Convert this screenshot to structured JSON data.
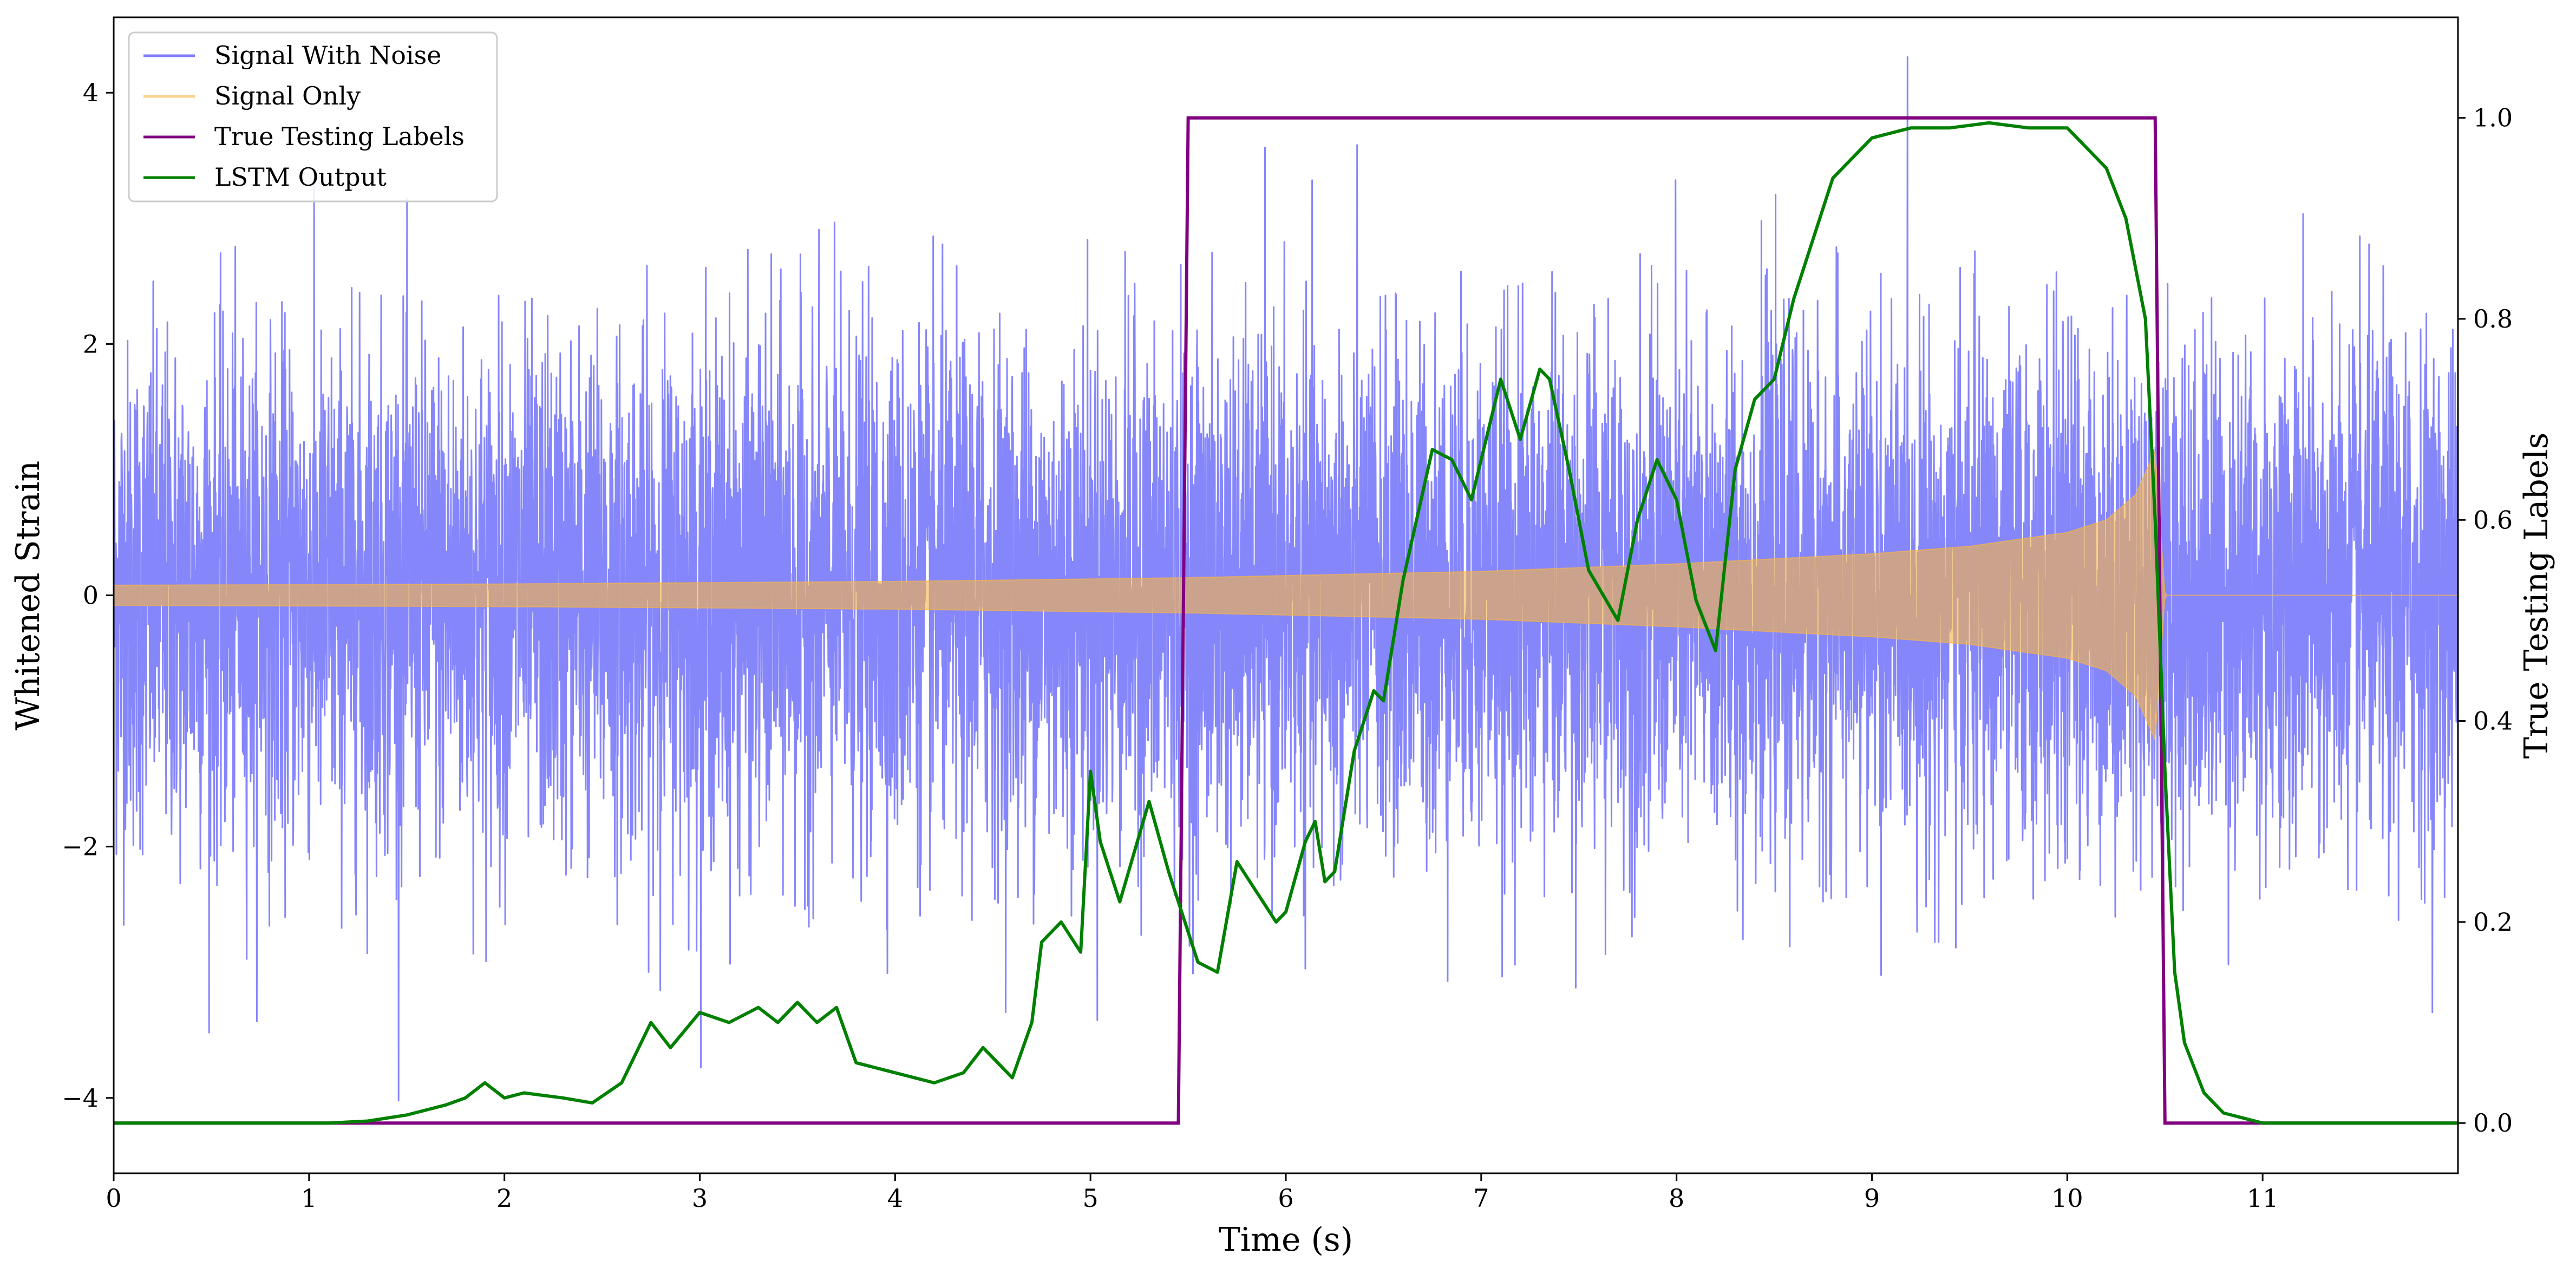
{
  "chart_data": {
    "type": "line",
    "x_axis": {
      "label": "Time (s)",
      "range": [
        0,
        12
      ],
      "ticks": [
        0,
        1,
        2,
        3,
        4,
        5,
        6,
        7,
        8,
        9,
        10,
        11
      ],
      "tick_labels": [
        "0",
        "1",
        "2",
        "3",
        "4",
        "5",
        "6",
        "7",
        "8",
        "9",
        "10",
        "11"
      ]
    },
    "y_axis_left": {
      "label": "Whitened Strain",
      "range": [
        -4.6,
        4.6
      ],
      "ticks": [
        -4,
        -2,
        0,
        2,
        4
      ],
      "tick_labels": [
        "−4",
        "−2",
        "0",
        "2",
        "4"
      ]
    },
    "y_axis_right": {
      "label": "True Testing Labels",
      "range": [
        -0.05,
        1.1
      ],
      "ticks": [
        0.0,
        0.2,
        0.4,
        0.6,
        0.8,
        1.0
      ],
      "tick_labels": [
        "0.0",
        "0.2",
        "0.4",
        "0.6",
        "0.8",
        "1.0"
      ]
    },
    "legend": {
      "position": "top-left",
      "entries": [
        "Signal With Noise",
        "Signal Only",
        "True Testing Labels",
        "LSTM Output"
      ]
    },
    "series": [
      {
        "name": "Signal With Noise",
        "axis": "left",
        "color": "#7f7ffb",
        "kind": "dense noise trace",
        "t_range": [
          0,
          12
        ],
        "rms_approx": 1.0,
        "min_approx": -4.1,
        "max_approx": 4.3
      },
      {
        "name": "Signal Only",
        "axis": "left",
        "color": "#f5b347",
        "kind": "chirp envelope",
        "t_range": [
          0,
          12
        ],
        "envelope": [
          [
            0,
            0.08
          ],
          [
            2,
            0.09
          ],
          [
            4,
            0.11
          ],
          [
            5.5,
            0.14
          ],
          [
            7,
            0.19
          ],
          [
            8,
            0.25
          ],
          [
            9,
            0.33
          ],
          [
            9.5,
            0.39
          ],
          [
            10,
            0.5
          ],
          [
            10.2,
            0.6
          ],
          [
            10.35,
            0.8
          ],
          [
            10.45,
            1.15
          ],
          [
            10.5,
            0.0
          ],
          [
            12,
            0.0
          ]
        ]
      },
      {
        "name": "True Testing Labels",
        "axis": "right",
        "color": "#800080",
        "points": [
          [
            0,
            0.0
          ],
          [
            5.45,
            0.0
          ],
          [
            5.5,
            1.0
          ],
          [
            10.45,
            1.0
          ],
          [
            10.5,
            0.0
          ],
          [
            12,
            0.0
          ]
        ]
      },
      {
        "name": "LSTM Output",
        "axis": "right",
        "color": "#008000",
        "points": [
          [
            0,
            0.0
          ],
          [
            0.9,
            0.0
          ],
          [
            1.1,
            0.0
          ],
          [
            1.3,
            0.002
          ],
          [
            1.5,
            0.008
          ],
          [
            1.7,
            0.018
          ],
          [
            1.8,
            0.025
          ],
          [
            1.9,
            0.04
          ],
          [
            2.0,
            0.025
          ],
          [
            2.1,
            0.03
          ],
          [
            2.3,
            0.025
          ],
          [
            2.45,
            0.02
          ],
          [
            2.6,
            0.04
          ],
          [
            2.75,
            0.1
          ],
          [
            2.85,
            0.075
          ],
          [
            3.0,
            0.11
          ],
          [
            3.15,
            0.1
          ],
          [
            3.3,
            0.115
          ],
          [
            3.4,
            0.1
          ],
          [
            3.5,
            0.12
          ],
          [
            3.6,
            0.1
          ],
          [
            3.7,
            0.115
          ],
          [
            3.8,
            0.06
          ],
          [
            4.0,
            0.05
          ],
          [
            4.2,
            0.04
          ],
          [
            4.35,
            0.05
          ],
          [
            4.45,
            0.075
          ],
          [
            4.6,
            0.045
          ],
          [
            4.7,
            0.1
          ],
          [
            4.75,
            0.18
          ],
          [
            4.85,
            0.2
          ],
          [
            4.95,
            0.17
          ],
          [
            5.0,
            0.35
          ],
          [
            5.05,
            0.28
          ],
          [
            5.15,
            0.22
          ],
          [
            5.3,
            0.32
          ],
          [
            5.4,
            0.25
          ],
          [
            5.55,
            0.16
          ],
          [
            5.65,
            0.15
          ],
          [
            5.75,
            0.26
          ],
          [
            5.85,
            0.23
          ],
          [
            5.95,
            0.2
          ],
          [
            6.0,
            0.21
          ],
          [
            6.1,
            0.28
          ],
          [
            6.15,
            0.3
          ],
          [
            6.2,
            0.24
          ],
          [
            6.25,
            0.25
          ],
          [
            6.35,
            0.37
          ],
          [
            6.45,
            0.43
          ],
          [
            6.5,
            0.42
          ],
          [
            6.6,
            0.54
          ],
          [
            6.75,
            0.67
          ],
          [
            6.85,
            0.66
          ],
          [
            6.95,
            0.62
          ],
          [
            7.1,
            0.74
          ],
          [
            7.2,
            0.68
          ],
          [
            7.3,
            0.75
          ],
          [
            7.35,
            0.74
          ],
          [
            7.45,
            0.65
          ],
          [
            7.55,
            0.55
          ],
          [
            7.7,
            0.5
          ],
          [
            7.8,
            0.6
          ],
          [
            7.9,
            0.66
          ],
          [
            8.0,
            0.62
          ],
          [
            8.1,
            0.52
          ],
          [
            8.2,
            0.47
          ],
          [
            8.3,
            0.65
          ],
          [
            8.4,
            0.72
          ],
          [
            8.5,
            0.74
          ],
          [
            8.6,
            0.82
          ],
          [
            8.8,
            0.94
          ],
          [
            9.0,
            0.98
          ],
          [
            9.2,
            0.99
          ],
          [
            9.4,
            0.99
          ],
          [
            9.6,
            0.995
          ],
          [
            9.8,
            0.99
          ],
          [
            10.0,
            0.99
          ],
          [
            10.1,
            0.97
          ],
          [
            10.2,
            0.95
          ],
          [
            10.3,
            0.9
          ],
          [
            10.4,
            0.8
          ],
          [
            10.45,
            0.6
          ],
          [
            10.5,
            0.35
          ],
          [
            10.55,
            0.15
          ],
          [
            10.6,
            0.08
          ],
          [
            10.7,
            0.03
          ],
          [
            10.8,
            0.01
          ],
          [
            11.0,
            0.0
          ],
          [
            12.0,
            0.0
          ]
        ]
      }
    ]
  }
}
